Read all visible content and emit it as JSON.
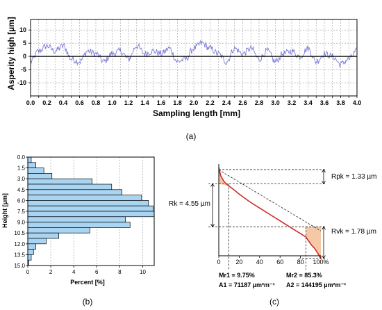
{
  "chart_data": [
    {
      "panel": "(a)",
      "type": "line",
      "xlabel": "Sampling length [mm]",
      "ylabel": "Asperity high [µm]",
      "xlim": [
        0,
        4.0
      ],
      "ylim": [
        -15,
        14
      ],
      "xticks": [
        "0.0",
        "0.1",
        "0.2",
        "0.3",
        "0.4",
        "0.5",
        "0.6",
        "0.7",
        "0.8",
        "0.9",
        "1.0",
        "1.1",
        "1.2",
        "1.3",
        "1.4",
        "1.5",
        "1.6",
        "1.7",
        "1.8",
        "1.9",
        "2.0",
        "2.1",
        "2.2",
        "2.3",
        "2.4",
        "2.5",
        "2.6",
        "2.7",
        "2.8",
        "2.9",
        "3.0",
        "3.1",
        "3.2",
        "3.3",
        "3.4",
        "3.5",
        "3.6",
        "3.7",
        "3.8",
        "3.9",
        "4.0"
      ],
      "xtick_labels_shown": [
        "0.0",
        "0.2",
        "0.4",
        "0.6",
        "0.8",
        "1.0",
        "1.2",
        "1.4",
        "1.6",
        "1.8",
        "2.0",
        "2.2",
        "2.4",
        "2.6",
        "2.8",
        "3.0",
        "3.2",
        "3.4",
        "3.6",
        "3.8",
        "4.0"
      ],
      "yticks": [
        "10",
        "5",
        "0",
        "-5",
        "-10"
      ],
      "grid": true,
      "series_color": "#7a7ad8",
      "x": [
        0.0,
        0.1,
        0.2,
        0.3,
        0.4,
        0.5,
        0.6,
        0.7,
        0.8,
        0.9,
        1.0,
        1.1,
        1.2,
        1.3,
        1.4,
        1.5,
        1.6,
        1.7,
        1.8,
        1.9,
        2.0,
        2.1,
        2.2,
        2.3,
        2.4,
        2.5,
        2.6,
        2.7,
        2.8,
        2.9,
        3.0,
        3.1,
        3.2,
        3.3,
        3.4,
        3.5,
        3.6,
        3.7,
        3.8,
        3.9,
        4.0
      ],
      "y": [
        -2,
        2,
        4,
        2,
        4,
        -1,
        -2,
        2,
        1,
        -2,
        1,
        2,
        -1,
        4,
        1,
        2,
        1,
        3,
        -2,
        -1,
        3,
        5,
        3,
        1,
        -2,
        3,
        1,
        3,
        -1,
        2,
        -2,
        1,
        2,
        0,
        3,
        -2,
        1,
        0,
        -3,
        -1,
        2
      ]
    },
    {
      "panel": "(b)",
      "type": "bar",
      "orientation": "horizontal",
      "xlabel": "Percent [%]",
      "ylabel": "Height [µm]",
      "xlim": [
        0,
        11
      ],
      "ylim": [
        15,
        0
      ],
      "xticks": [
        "0",
        "2",
        "4",
        "6",
        "8",
        "10"
      ],
      "yticks": [
        "0.0",
        "1.5",
        "3.0",
        "4.5",
        "6.0",
        "7.5",
        "9.0",
        "10.5",
        "12.0",
        "13.5",
        "15.0"
      ],
      "bar_color": "#a9d4f2",
      "bin_width": 0.75,
      "bin_starts": [
        0.0,
        0.75,
        1.5,
        2.25,
        3.0,
        3.75,
        4.5,
        5.25,
        6.0,
        6.75,
        7.5,
        8.25,
        9.0,
        9.75,
        10.5,
        11.25,
        12.0,
        12.75,
        13.5,
        14.25
      ],
      "values": [
        0.3,
        0.7,
        1.4,
        2.1,
        5.6,
        7.3,
        8.2,
        9.9,
        10.5,
        10.9,
        11.0,
        8.5,
        8.9,
        5.4,
        2.7,
        1.6,
        0.7,
        0.5,
        0.3,
        0.1
      ]
    },
    {
      "panel": "(c)",
      "type": "line",
      "subtype": "abbott-firestone",
      "xlim": [
        0,
        100
      ],
      "xticks": [
        "0",
        "20",
        "40",
        "60",
        "80",
        "100%"
      ],
      "curve_color": "#cc2a2a",
      "area_color": "#f6c9a6",
      "x": [
        0,
        2,
        5,
        8,
        9.75,
        15,
        20,
        30,
        40,
        50,
        60,
        70,
        80,
        85.3,
        88,
        91,
        94,
        96,
        98,
        100
      ],
      "y_um": [
        -0.2,
        0.6,
        1.1,
        1.4,
        1.52,
        1.9,
        2.3,
        3.0,
        3.6,
        4.2,
        4.8,
        5.4,
        6.0,
        6.32,
        6.7,
        7.1,
        7.4,
        7.7,
        8.0,
        8.4
      ],
      "annotations": {
        "rpk": "Rpk = 1.33 µm",
        "rk": "Rk = 4.55 µm",
        "rvk": "Rvk = 1.78 µm",
        "mr1": "Mr1 = 9.75%",
        "a1": "A1 = 71187 µm²m⁻¹",
        "mr2": "Mr2 = 85.3%",
        "a2": "A2 = 144195 µm²m⁻¹"
      }
    }
  ],
  "captions": {
    "a": "(a)",
    "b": "(b)",
    "c": "(c)"
  }
}
